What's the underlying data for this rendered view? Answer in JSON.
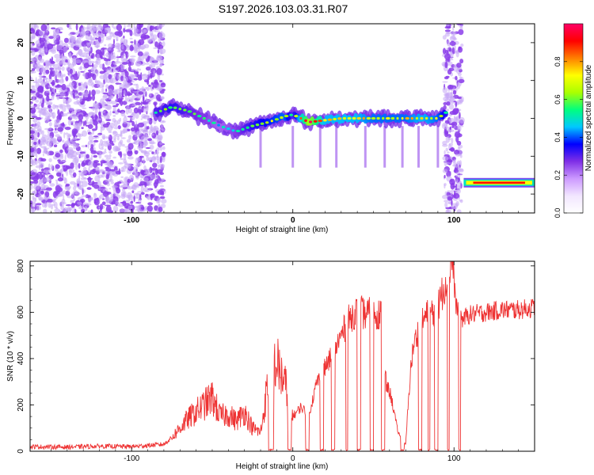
{
  "title": "S197.2026.103.03.31.R07",
  "colors": {
    "snr_line": "#ee3333",
    "axis": "#000000",
    "plot_bg": "#ffffff",
    "speckle": "#8b3dea",
    "speckle_light": "#c7a8f5"
  },
  "colorbar": {
    "label": "Normalized spectral amplitude",
    "ticks": [
      "0.0",
      "0.2",
      "0.4",
      "0.6",
      "0.8"
    ],
    "tick_values": [
      0.0,
      0.2,
      0.4,
      0.6,
      0.8
    ],
    "range": [
      0,
      1
    ],
    "stops": [
      "#ffffff",
      "#f2e6ff",
      "#cc99ff",
      "#7f2fe6",
      "#0000ff",
      "#00c8ff",
      "#00ff7f",
      "#aaff00",
      "#ffff00",
      "#ff7f00",
      "#ff0000",
      "#ff0066"
    ]
  },
  "chart_data": [
    {
      "type": "heatmap",
      "title": "S197.2026.103.03.31.R07",
      "xlabel": "Height of straight line (km)",
      "ylabel": "Frequency (Hz)",
      "xlim": [
        -163,
        150
      ],
      "ylim": [
        -25,
        25
      ],
      "xticks": [
        -100,
        0,
        100
      ],
      "xtick_labels": [
        "-100",
        "0",
        "100"
      ],
      "yticks": [
        -20,
        -10,
        0,
        10,
        20
      ],
      "ytick_labels": [
        "-20",
        "-10",
        "0",
        "10",
        "20"
      ],
      "regions": [
        {
          "name": "noise",
          "x": [
            -163,
            -80
          ],
          "y": [
            -25,
            25
          ],
          "amplitude": 0.15
        },
        {
          "name": "noise-column",
          "x": [
            94,
            105
          ],
          "y": [
            -25,
            25
          ],
          "amplitude": 0.15
        }
      ],
      "ridge": {
        "x": [
          -85,
          -75,
          -65,
          -55,
          -45,
          -35,
          -25,
          -15,
          -5,
          0,
          10,
          20,
          30,
          40,
          50,
          60,
          70,
          80,
          90,
          95
        ],
        "freq": [
          1.5,
          3.0,
          2.0,
          0.0,
          -2.0,
          -3.5,
          -2.0,
          -1.0,
          0.5,
          1.0,
          -1.0,
          -0.5,
          0.0,
          0.0,
          0.0,
          0.0,
          0.0,
          0.0,
          0.0,
          1.5
        ],
        "amplitude": [
          0.4,
          0.45,
          0.4,
          0.35,
          0.3,
          0.35,
          0.45,
          0.5,
          0.55,
          0.4,
          0.85,
          0.6,
          0.6,
          0.6,
          0.55,
          0.55,
          0.55,
          0.6,
          0.55,
          0.45
        ]
      },
      "band": {
        "x": [
          106,
          150
        ],
        "freq": -17,
        "amplitude": 0.9
      },
      "spikes_x": [
        -20,
        0,
        17,
        27,
        45,
        57,
        68,
        78,
        90
      ]
    },
    {
      "type": "line",
      "xlabel": "Height of straight line (km)",
      "ylabel": "SNR (10 * v/v)",
      "xlim": [
        -163,
        150
      ],
      "ylim": [
        0,
        820
      ],
      "xticks": [
        -100,
        0,
        100
      ],
      "xtick_labels": [
        "-100",
        "0",
        "100"
      ],
      "yticks": [
        0,
        200,
        400,
        600,
        800
      ],
      "ytick_labels": [
        "0",
        "200",
        "400",
        "600",
        "800"
      ],
      "series": [
        {
          "name": "SNR",
          "x": [
            -163,
            -140,
            -120,
            -100,
            -80,
            -75,
            -65,
            -55,
            -50,
            -45,
            -40,
            -35,
            -30,
            -25,
            -20,
            -15,
            -10,
            -5,
            0,
            5,
            10,
            15,
            20,
            25,
            30,
            35,
            40,
            45,
            50,
            55,
            58,
            60,
            62,
            65,
            68,
            70,
            73,
            75,
            78,
            80,
            85,
            90,
            95,
            97,
            99,
            101,
            103,
            105,
            110,
            120,
            130,
            140,
            150
          ],
          "values": [
            20,
            18,
            22,
            20,
            30,
            60,
            140,
            200,
            230,
            150,
            160,
            130,
            170,
            100,
            80,
            310,
            380,
            290,
            150,
            190,
            160,
            300,
            360,
            420,
            500,
            570,
            610,
            590,
            600,
            590,
            280,
            260,
            200,
            90,
            40,
            30,
            350,
            460,
            520,
            560,
            600,
            620,
            740,
            790,
            820,
            640,
            600,
            570,
            590,
            600,
            610,
            610,
            620
          ]
        }
      ]
    }
  ]
}
